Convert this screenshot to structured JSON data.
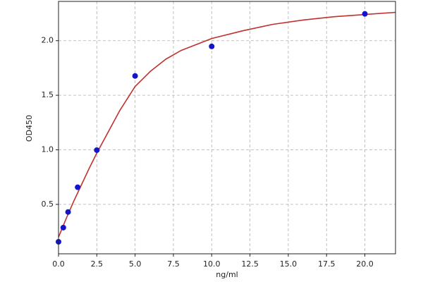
{
  "chart_data": {
    "type": "scatter",
    "xlabel": "ng/ml",
    "ylabel": "OD450",
    "points": {
      "color": "#1414c8",
      "x": [
        0,
        0.3125,
        0.625,
        1.25,
        2.5,
        5,
        10,
        20
      ],
      "y": [
        0.157,
        0.287,
        0.43,
        0.657,
        0.997,
        1.677,
        1.948,
        2.246
      ]
    },
    "curve": {
      "color": "#c0302c",
      "x": [
        0,
        0.5,
        1,
        1.5,
        2,
        2.5,
        3,
        4,
        5,
        6,
        7,
        8,
        10,
        12,
        14,
        16,
        18,
        20,
        22
      ],
      "y": [
        0.2,
        0.37,
        0.53,
        0.68,
        0.83,
        0.97,
        1.1,
        1.36,
        1.58,
        1.72,
        1.83,
        1.91,
        2.02,
        2.09,
        2.15,
        2.19,
        2.22,
        2.24,
        2.26
      ]
    },
    "xlim": [
      0,
      22
    ],
    "ylim": [
      0.047,
      2.36
    ],
    "xticks": [
      {
        "value": 0,
        "label": "0.0"
      },
      2.5,
      {
        "value": 5,
        "label": "5.0"
      },
      7.5,
      {
        "value": 10,
        "label": "10.0"
      },
      12.5,
      {
        "value": 15,
        "label": "15.0"
      },
      17.5,
      {
        "value": 20,
        "label": "20.0"
      }
    ],
    "yticks": [
      0.5,
      {
        "value": 1,
        "label": "1.0"
      },
      1.5,
      {
        "value": 2,
        "label": "2.0"
      }
    ],
    "grid": true
  }
}
